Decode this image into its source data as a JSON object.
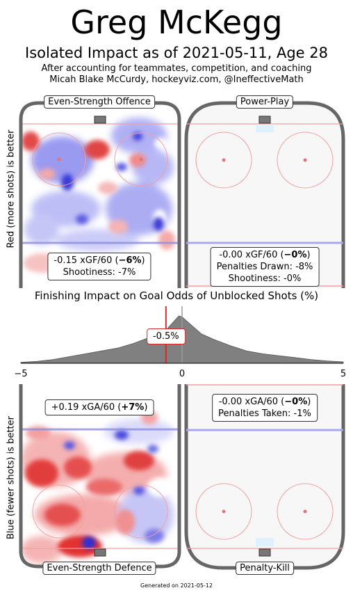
{
  "header": {
    "title": "Greg McKegg",
    "subtitle": "Isolated Impact as of 2021-05-11, Age 28",
    "note_line1": "After accounting for teammates, competition, and coaching",
    "note_line2": "Micah Blake McCurdy, hockeyviz.com, @IneffectiveMath"
  },
  "axis_labels": {
    "top": "Red (more shots) is better",
    "bottom": "Blue (fewer shots) is better"
  },
  "panels": {
    "ev_offence": {
      "label": "Even-Strength Offence",
      "line1_pre": "-0.15 xGF/60 (",
      "line1_bold": "−6%",
      "line1_post": ")",
      "line2": "Shootiness: -7%"
    },
    "power_play": {
      "label": "Power-Play",
      "line1_pre": "-0.00 xGF/60 (",
      "line1_bold": "−0%",
      "line1_post": ")",
      "line2": "Penalties Drawn: -8%",
      "line3": "Shootiness: -0%"
    },
    "ev_defence": {
      "label": "Even-Strength Defence",
      "line1_pre": "+0.19 xGA/60 (",
      "line1_bold": "+7%",
      "line1_post": ")"
    },
    "penalty_kill": {
      "label": "Penalty-Kill",
      "line1_pre": "-0.00 xGA/60 (",
      "line1_bold": "−0%",
      "line1_post": ")",
      "line2": "Penalties Taken: -1%"
    }
  },
  "chart_data": {
    "type": "area",
    "title": "Finishing Impact on Goal Odds of Unblocked Shots (%)",
    "xlim": [
      -5,
      5
    ],
    "x_ticks": [
      "−5",
      "0",
      "5"
    ],
    "marker_value": -0.5,
    "marker_label": "-0.5%",
    "density": {
      "x": [
        -5,
        -4.5,
        -4,
        -3.5,
        -3,
        -2.5,
        -2,
        -1.5,
        -1,
        -0.7,
        -0.5,
        -0.3,
        -0.1,
        0,
        0.2,
        0.4,
        0.6,
        1,
        1.5,
        2,
        2.5,
        3,
        3.5,
        4,
        4.5,
        5
      ],
      "y": [
        0.02,
        0.04,
        0.08,
        0.14,
        0.2,
        0.26,
        0.32,
        0.42,
        0.55,
        0.62,
        0.7,
        0.85,
        1.0,
        0.98,
        0.86,
        0.74,
        0.62,
        0.5,
        0.37,
        0.26,
        0.2,
        0.16,
        0.12,
        0.08,
        0.05,
        0.03
      ]
    },
    "colors": {
      "density": "#808080",
      "marker": "#d62728",
      "zero": "#9a9a9a"
    }
  },
  "footer": "Generated on 2021-05-12"
}
